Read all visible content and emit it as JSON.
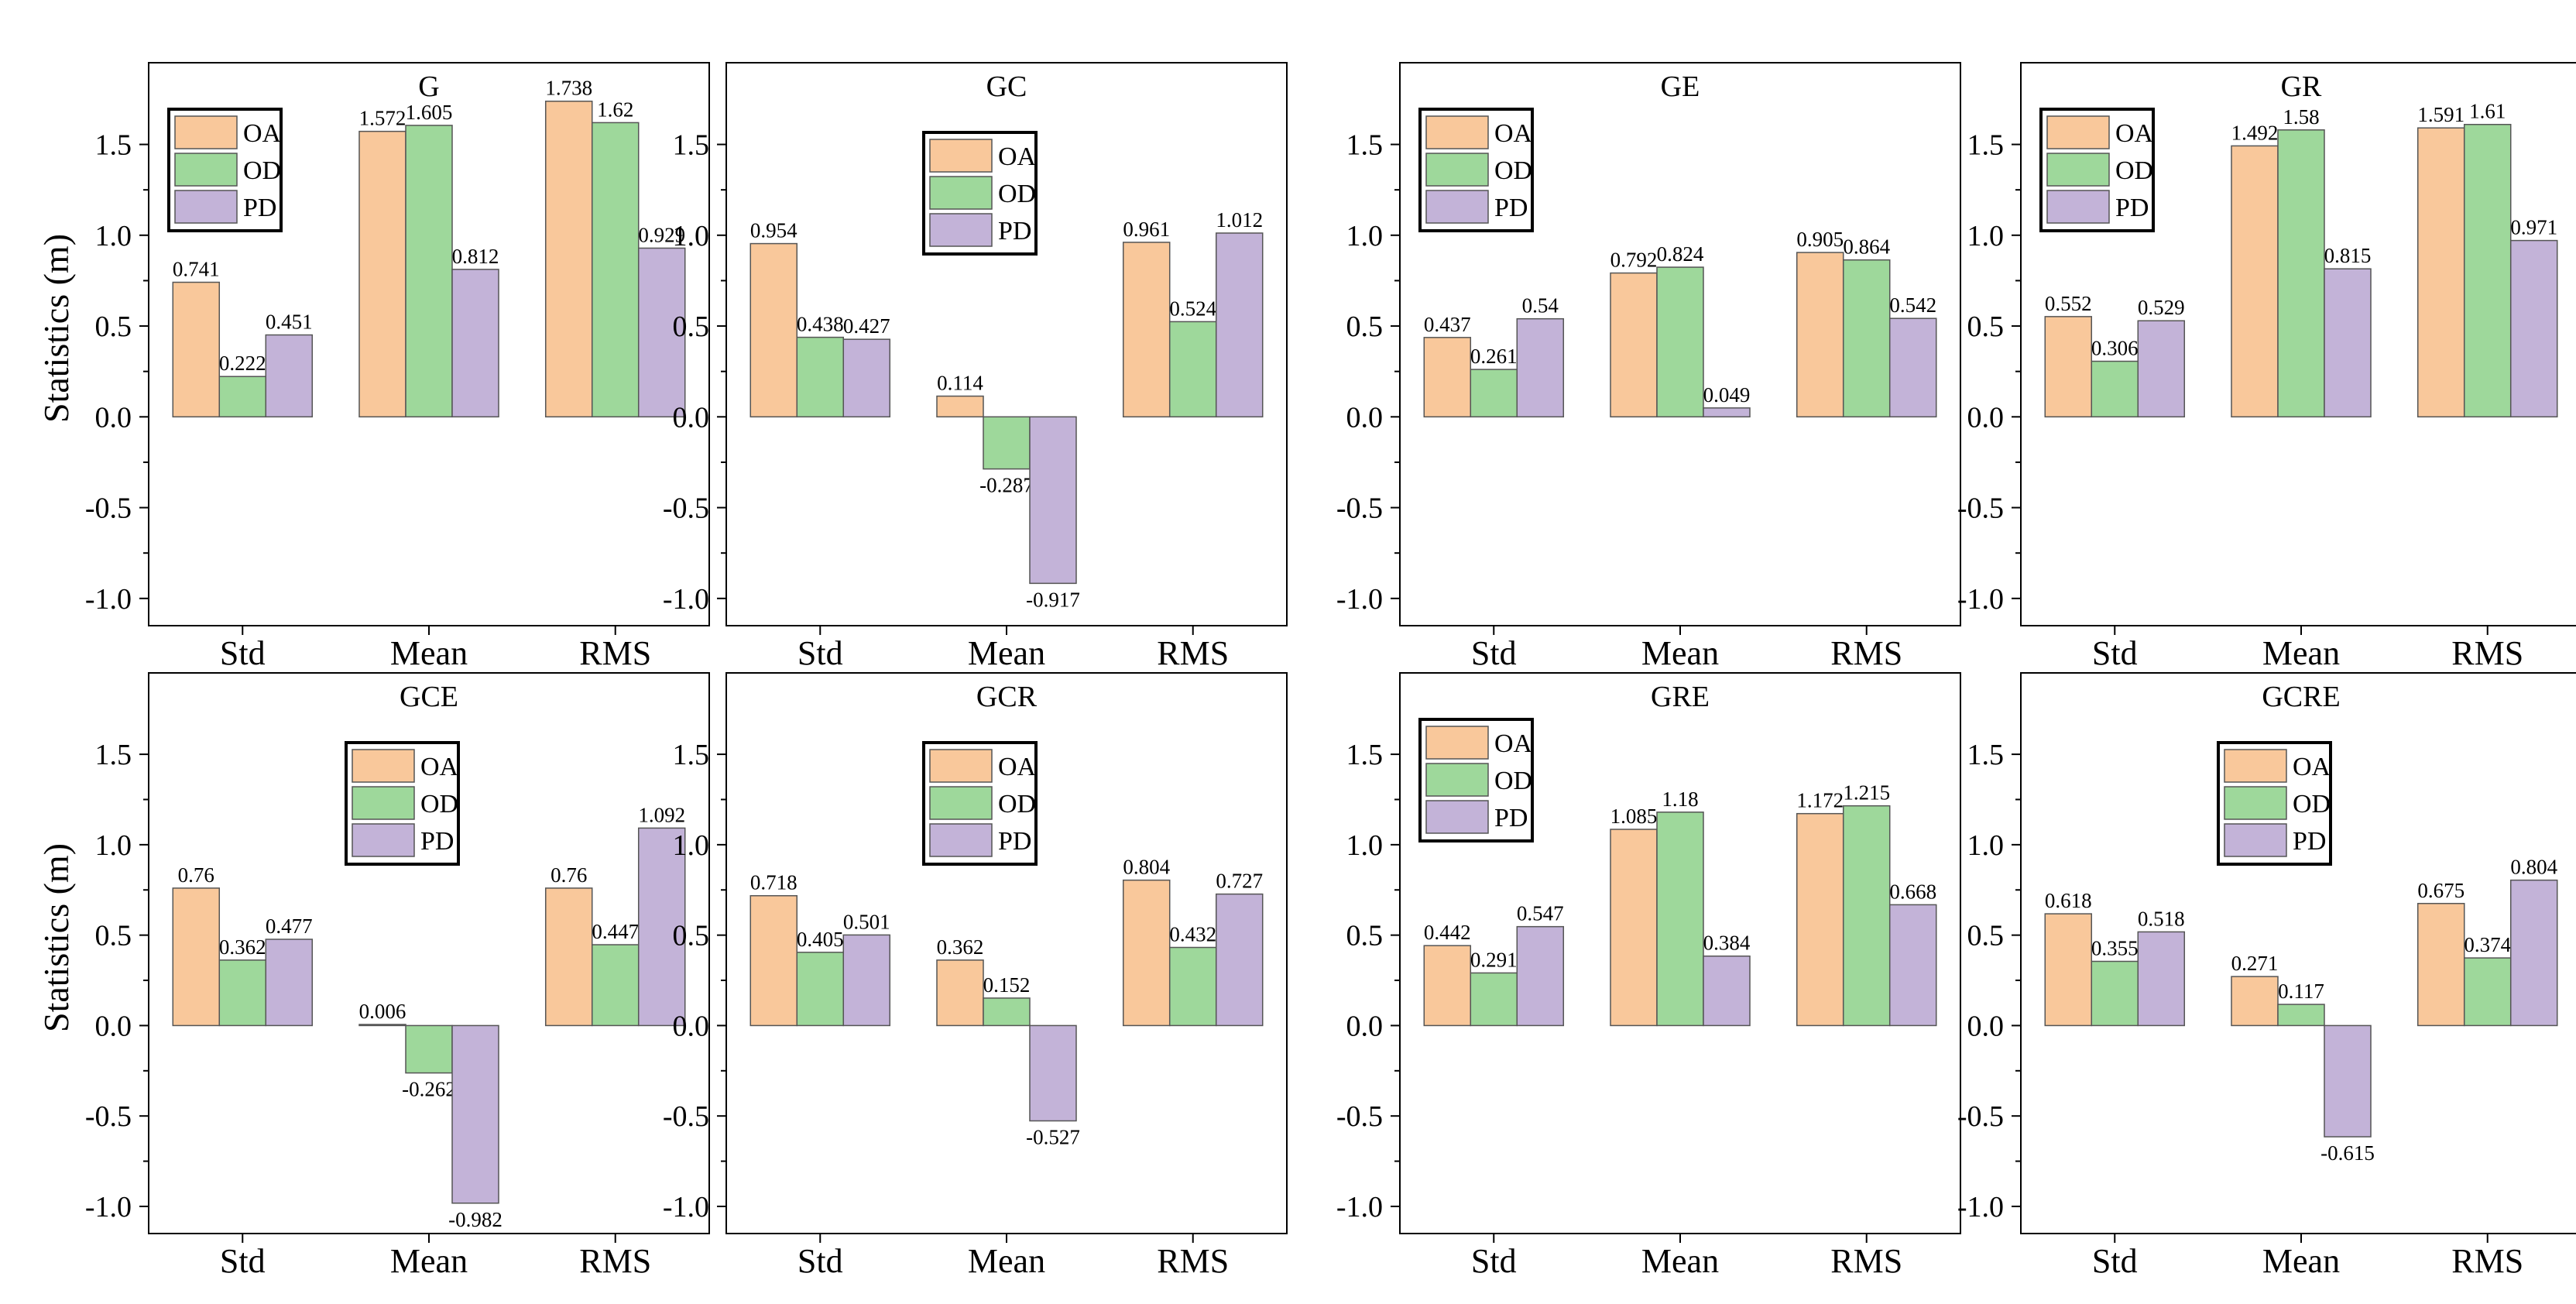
{
  "figure": {
    "ylabel": "Statistics (m)",
    "categories": [
      "Std",
      "Mean",
      "RMS"
    ],
    "colors": {
      "OA": "#f9c89b",
      "OD": "#9ed89b",
      "PD": "#c3b3d8"
    },
    "ylim": [
      -1.15,
      1.95
    ],
    "yticks": [
      -1.0,
      -0.5,
      0.0,
      0.5,
      1.0,
      1.5
    ],
    "ytick_labels": [
      "-1.0",
      "-0.5",
      "0.0",
      "0.5",
      "1.0",
      "1.5"
    ]
  },
  "chart_data": [
    {
      "type": "bar",
      "title": "G",
      "categories": [
        "Std",
        "Mean",
        "RMS"
      ],
      "legend_position": "top-left",
      "ylim": [
        -1.15,
        1.95
      ],
      "series": [
        {
          "name": "OA",
          "values": [
            0.741,
            1.572,
            1.738
          ],
          "labels": [
            "0.741",
            "1.572",
            "1.738"
          ]
        },
        {
          "name": "OD",
          "values": [
            0.222,
            1.605,
            1.62
          ],
          "labels": [
            "0.222",
            "1.605",
            "1.62"
          ]
        },
        {
          "name": "PD",
          "values": [
            0.451,
            0.812,
            0.929
          ],
          "labels": [
            "0.451",
            "0.812",
            "0.929"
          ]
        }
      ]
    },
    {
      "type": "bar",
      "title": "GC",
      "categories": [
        "Std",
        "Mean",
        "RMS"
      ],
      "legend_position": "top-center",
      "ylim": [
        -1.15,
        1.95
      ],
      "series": [
        {
          "name": "OA",
          "values": [
            0.954,
            0.114,
            0.961
          ],
          "labels": [
            "0.954",
            "0.114",
            "0.961"
          ]
        },
        {
          "name": "OD",
          "values": [
            0.438,
            -0.287,
            0.524
          ],
          "labels": [
            "0.438",
            "-0.287",
            "0.524"
          ]
        },
        {
          "name": "PD",
          "values": [
            0.427,
            -0.917,
            1.012
          ],
          "labels": [
            "0.427",
            "-0.917",
            "1.012"
          ]
        }
      ]
    },
    {
      "type": "bar",
      "title": "GE",
      "categories": [
        "Std",
        "Mean",
        "RMS"
      ],
      "legend_position": "top-left",
      "ylim": [
        -1.15,
        1.95
      ],
      "series": [
        {
          "name": "OA",
          "values": [
            0.437,
            0.792,
            0.905
          ],
          "labels": [
            "0.437",
            "0.792",
            "0.905"
          ]
        },
        {
          "name": "OD",
          "values": [
            0.261,
            0.824,
            0.864
          ],
          "labels": [
            "0.261",
            "0.824",
            "0.864"
          ]
        },
        {
          "name": "PD",
          "values": [
            0.54,
            0.049,
            0.542
          ],
          "labels": [
            "0.54",
            "0.049",
            "0.542"
          ]
        }
      ]
    },
    {
      "type": "bar",
      "title": "GR",
      "categories": [
        "Std",
        "Mean",
        "RMS"
      ],
      "legend_position": "top-left",
      "ylim": [
        -1.15,
        1.95
      ],
      "series": [
        {
          "name": "OA",
          "values": [
            0.552,
            1.492,
            1.591
          ],
          "labels": [
            "0.552",
            "1.492",
            "1.591"
          ]
        },
        {
          "name": "OD",
          "values": [
            0.306,
            1.58,
            1.61
          ],
          "labels": [
            "0.306",
            "1.58",
            "1.61"
          ]
        },
        {
          "name": "PD",
          "values": [
            0.529,
            0.815,
            0.971
          ],
          "labels": [
            "0.529",
            "0.815",
            "0.971"
          ]
        }
      ]
    },
    {
      "type": "bar",
      "title": "GCE",
      "categories": [
        "Std",
        "Mean",
        "RMS"
      ],
      "legend_position": "top-center",
      "ylim": [
        -1.15,
        1.95
      ],
      "series": [
        {
          "name": "OA",
          "values": [
            0.76,
            0.006,
            0.76
          ],
          "labels": [
            "0.76",
            "0.006",
            "0.76"
          ]
        },
        {
          "name": "OD",
          "values": [
            0.362,
            -0.262,
            0.447
          ],
          "labels": [
            "0.362",
            "-0.262",
            "0.447"
          ]
        },
        {
          "name": "PD",
          "values": [
            0.477,
            -0.982,
            1.092
          ],
          "labels": [
            "0.477",
            "-0.982",
            "1.092"
          ]
        }
      ]
    },
    {
      "type": "bar",
      "title": "GCR",
      "categories": [
        "Std",
        "Mean",
        "RMS"
      ],
      "legend_position": "top-center",
      "ylim": [
        -1.15,
        1.95
      ],
      "series": [
        {
          "name": "OA",
          "values": [
            0.718,
            0.362,
            0.804
          ],
          "labels": [
            "0.718",
            "0.362",
            "0.804"
          ]
        },
        {
          "name": "OD",
          "values": [
            0.405,
            0.152,
            0.432
          ],
          "labels": [
            "0.405",
            "0.152",
            "0.432"
          ]
        },
        {
          "name": "PD",
          "values": [
            0.501,
            -0.527,
            0.727
          ],
          "labels": [
            "0.501",
            "-0.527",
            "0.727"
          ]
        }
      ]
    },
    {
      "type": "bar",
      "title": "GRE",
      "categories": [
        "Std",
        "Mean",
        "RMS"
      ],
      "legend_position": "top-left",
      "ylim": [
        -1.15,
        1.95
      ],
      "series": [
        {
          "name": "OA",
          "values": [
            0.442,
            1.085,
            1.172
          ],
          "labels": [
            "0.442",
            "1.085",
            "1.172"
          ]
        },
        {
          "name": "OD",
          "values": [
            0.291,
            1.18,
            1.215
          ],
          "labels": [
            "0.291",
            "1.18",
            "1.215"
          ]
        },
        {
          "name": "PD",
          "values": [
            0.547,
            0.384,
            0.668
          ],
          "labels": [
            "0.547",
            "0.384",
            "0.668"
          ]
        }
      ]
    },
    {
      "type": "bar",
      "title": "GCRE",
      "categories": [
        "Std",
        "Mean",
        "RMS"
      ],
      "legend_position": "top-center",
      "ylim": [
        -1.15,
        1.95
      ],
      "series": [
        {
          "name": "OA",
          "values": [
            0.618,
            0.271,
            0.675
          ],
          "labels": [
            "0.618",
            "0.271",
            "0.675"
          ]
        },
        {
          "name": "OD",
          "values": [
            0.355,
            0.117,
            0.374
          ],
          "labels": [
            "0.355",
            "0.117",
            "0.374"
          ]
        },
        {
          "name": "PD",
          "values": [
            0.518,
            -0.615,
            0.804
          ],
          "labels": [
            "0.518",
            "-0.615",
            "0.804"
          ]
        }
      ]
    }
  ]
}
